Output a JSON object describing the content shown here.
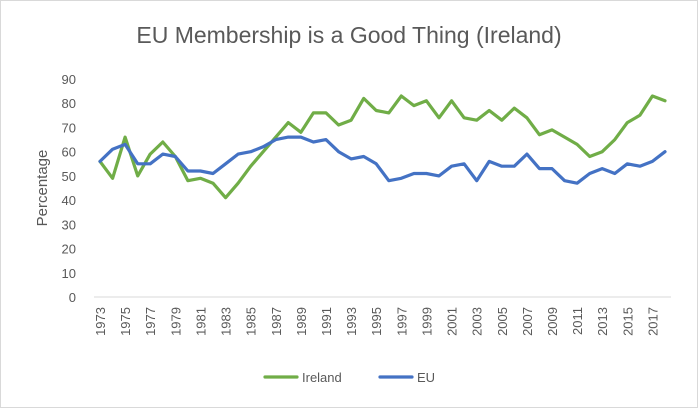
{
  "chart_data": {
    "type": "line",
    "title": "EU Membership is a Good Thing (Ireland)",
    "xlabel": "",
    "ylabel": "Percentage",
    "ylim": [
      0,
      90
    ],
    "yticks": [
      0,
      10,
      20,
      30,
      40,
      50,
      60,
      70,
      80,
      90
    ],
    "x": [
      1973,
      1974,
      1975,
      1976,
      1977,
      1978,
      1979,
      1980,
      1981,
      1982,
      1983,
      1984,
      1985,
      1986,
      1987,
      1988,
      1989,
      1990,
      1991,
      1992,
      1993,
      1994,
      1995,
      1996,
      1997,
      1998,
      1999,
      2000,
      2001,
      2002,
      2003,
      2004,
      2005,
      2006,
      2007,
      2008,
      2009,
      2010,
      2011,
      2012,
      2013,
      2014,
      2015,
      2016,
      2017,
      2018
    ],
    "xtick_labels": [
      "1973",
      "1975",
      "1977",
      "1979",
      "1981",
      "1983",
      "1985",
      "1987",
      "1989",
      "1991",
      "1993",
      "1995",
      "1997",
      "1999",
      "2001",
      "2003",
      "2005",
      "2007",
      "2009",
      "2011",
      "2013",
      "2015",
      "2017"
    ],
    "series": [
      {
        "name": "Ireland",
        "color": "#70ad47",
        "values": [
          56,
          49,
          66,
          50,
          59,
          64,
          58,
          48,
          49,
          47,
          41,
          47,
          54,
          60,
          66,
          72,
          68,
          76,
          76,
          71,
          73,
          82,
          77,
          76,
          83,
          79,
          81,
          74,
          81,
          74,
          73,
          77,
          73,
          78,
          74,
          67,
          69,
          66,
          63,
          58,
          60,
          65,
          72,
          75,
          83,
          81
        ]
      },
      {
        "name": "EU",
        "color": "#4472c4",
        "values": [
          56,
          61,
          63,
          55,
          55,
          59,
          58,
          52,
          52,
          51,
          55,
          59,
          60,
          62,
          65,
          66,
          66,
          64,
          65,
          60,
          57,
          58,
          55,
          48,
          49,
          51,
          51,
          50,
          54,
          55,
          48,
          56,
          54,
          54,
          59,
          53,
          53,
          48,
          47,
          51,
          53,
          51,
          55,
          54,
          56,
          60
        ]
      }
    ],
    "legend_position": "bottom-center",
    "grid": false
  }
}
